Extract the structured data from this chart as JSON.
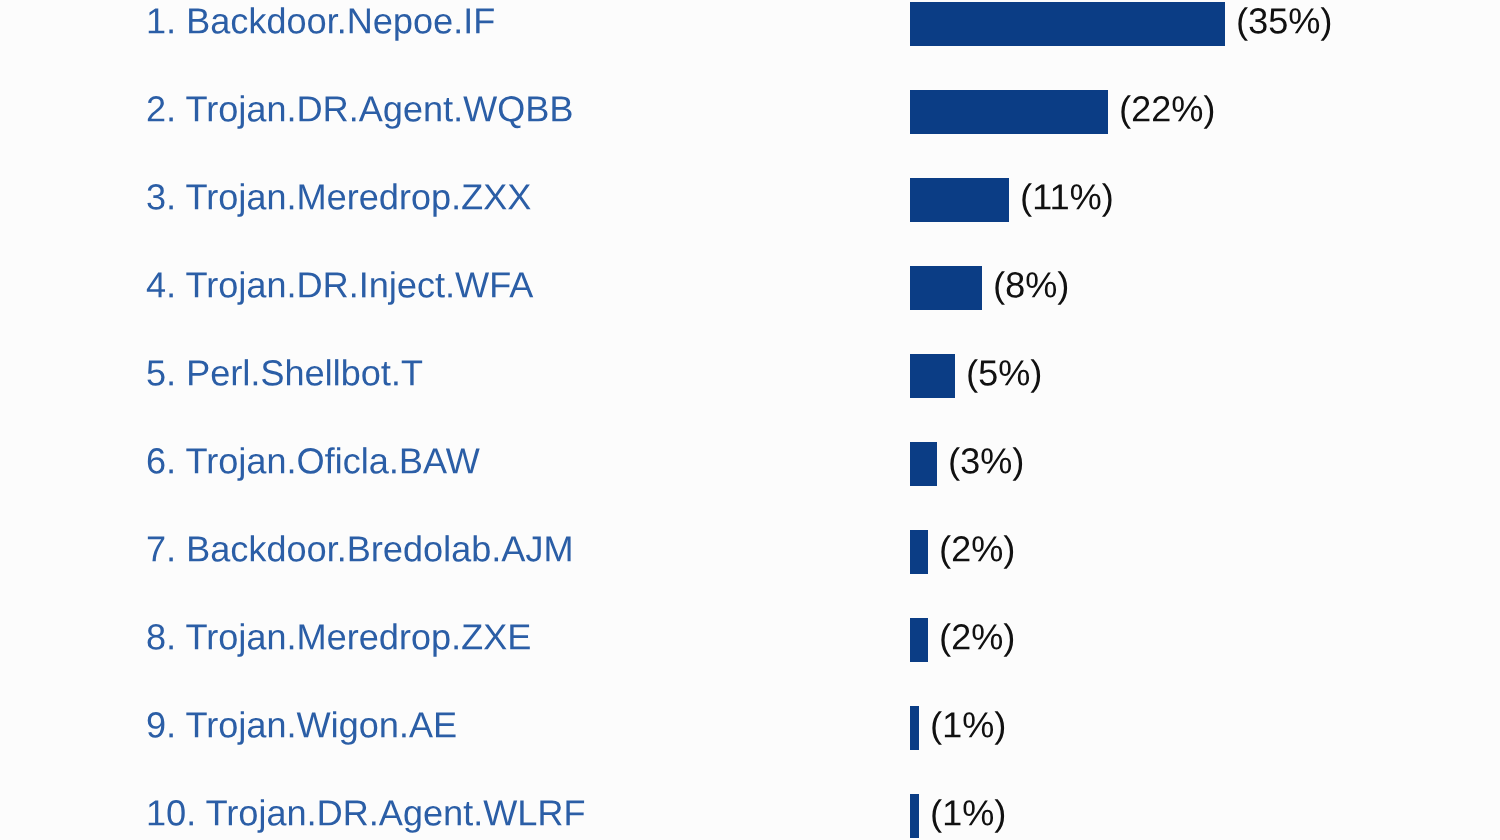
{
  "chart_data": {
    "type": "bar",
    "orientation": "horizontal",
    "categories": [
      "1. Backdoor.Nepoe.IF",
      "2. Trojan.DR.Agent.WQBB",
      "3. Trojan.Meredrop.ZXX",
      "4. Trojan.DR.Inject.WFA",
      "5. Perl.Shellbot.T",
      "6. Trojan.Oficla.BAW",
      "7. Backdoor.Bredolab.AJM",
      "8. Trojan.Meredrop.ZXE",
      "9. Trojan.Wigon.AE",
      "10. Trojan.DR.Agent.WLRF"
    ],
    "values": [
      35,
      22,
      11,
      8,
      5,
      3,
      2,
      2,
      1,
      1
    ],
    "value_labels": [
      "(35%)",
      "(22%)",
      "(11%)",
      "(8%)",
      "(5%)",
      "(3%)",
      "(2%)",
      "(2%)",
      "(1%)",
      "(1%)"
    ],
    "color": "#0b3d85",
    "tick_labels": false
  }
}
